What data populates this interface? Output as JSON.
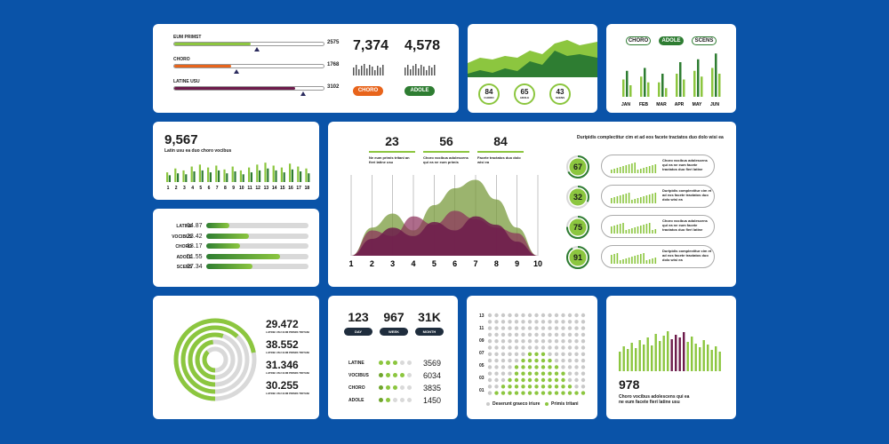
{
  "colors": {
    "bg": "#0a53a8",
    "green": "#8cc63f",
    "dgreen": "#2e7d32",
    "purple": "#6d1b4b",
    "orange": "#e8641b",
    "grey": "#d9d9d9"
  },
  "card1": {
    "bars": [
      {
        "label": "EUM PRIMST",
        "value": "2575",
        "frac": 0.51,
        "marker": 0.55,
        "color": "#8cc63f"
      },
      {
        "label": "CHORO",
        "value": "1768",
        "frac": 0.38,
        "marker": 0.42,
        "color": "#e8641b"
      },
      {
        "label": "LATINE USU",
        "value": "3102",
        "frac": 0.81,
        "marker": 0.86,
        "color": "#6d1b4b"
      }
    ],
    "stats": [
      {
        "value": "7,374",
        "pill": "CHORO",
        "pill_color": "#e8641b"
      },
      {
        "value": "4,578",
        "pill": "ADOLE",
        "pill_color": "#2e7d32"
      }
    ]
  },
  "card2": {
    "circles": [
      {
        "value": "84",
        "label": "CHORO"
      },
      {
        "value": "65",
        "label": "ADOLE"
      },
      {
        "value": "43",
        "label": "SCENS"
      }
    ]
  },
  "card3": {
    "pills": [
      "CHORO",
      "ADOLE",
      "SCENS"
    ],
    "chart_data": {
      "type": "bar",
      "categories": [
        "JAN",
        "FEB",
        "MAR",
        "APR",
        "MAY",
        "JUN"
      ],
      "series": [
        {
          "values": [
            6,
            7,
            5,
            8,
            9,
            10
          ]
        },
        {
          "values": [
            9,
            10,
            8,
            12,
            13,
            15
          ]
        },
        {
          "values": [
            4,
            5,
            3,
            6,
            7,
            8
          ]
        }
      ]
    }
  },
  "card4": {
    "value": "9,567",
    "caption": "Latin usu ea duo choro vocibus",
    "chart_data": {
      "type": "bar",
      "categories": [
        "1",
        "2",
        "3",
        "4",
        "5",
        "6",
        "7",
        "8",
        "9",
        "10",
        "11",
        "12",
        "13",
        "14",
        "15",
        "16",
        "17",
        "18"
      ],
      "series": [
        {
          "values": [
            10,
            14,
            12,
            16,
            18,
            15,
            17,
            13,
            16,
            12,
            15,
            18,
            20,
            17,
            15,
            19,
            16,
            14
          ]
        },
        {
          "values": [
            7,
            9,
            8,
            11,
            12,
            10,
            12,
            9,
            11,
            8,
            10,
            12,
            14,
            12,
            10,
            13,
            11,
            9
          ]
        }
      ]
    }
  },
  "card5": {
    "rows": [
      {
        "label": "LATINE",
        "value": "14.87",
        "frac": 0.23
      },
      {
        "label": "VOCIBUS",
        "value": "23.42",
        "frac": 0.42
      },
      {
        "label": "CHORO",
        "value": "18.17",
        "frac": 0.33
      },
      {
        "label": "ADOLE",
        "value": "51.55",
        "frac": 0.72
      },
      {
        "label": "SCENS",
        "value": "27.34",
        "frac": 0.45
      }
    ]
  },
  "card6": {
    "kpis": [
      {
        "value": "23",
        "caption": "Ne eum primis tritani an fieri latine usu"
      },
      {
        "value": "56",
        "caption": "Choro vocibus adolescens qui ea ne eum primis"
      },
      {
        "value": "84",
        "caption": "Facete tractatos duo dolo wisi ea"
      }
    ],
    "heading": "Duripidis complectitur cim et ad eos facete tractatos duo dolo wisi ea",
    "chart_data": {
      "type": "area",
      "x": [
        "1",
        "2",
        "3",
        "4",
        "5",
        "6",
        "7",
        "8",
        "9",
        "10"
      ],
      "series": [
        {
          "values": [
            0,
            6,
            10,
            7,
            12,
            9,
            14,
            11,
            5,
            0
          ]
        },
        {
          "values": [
            0,
            10,
            15,
            9,
            18,
            24,
            27,
            20,
            10,
            0
          ]
        },
        {
          "values": [
            0,
            9,
            7,
            14,
            11,
            16,
            13,
            10,
            8,
            0
          ]
        }
      ]
    },
    "gauges": [
      {
        "value": "67",
        "text": "Choro vocibus adolescens qui ea ne eum facete tractatos duo fieri latine"
      },
      {
        "value": "32",
        "text": "Duripidis complectitur cim et ad eos facete tractatos duo dolo wisi ea"
      },
      {
        "value": "75",
        "text": "Choro vocibus adolescens qui ea ne eum facete tractatos duo fieri latine"
      },
      {
        "value": "91",
        "text": "Duripidis complectitur cim et ad eos facete tractatos duo dolo wisi ea"
      }
    ]
  },
  "card7": {
    "values": [
      {
        "value": "29.472",
        "caption": "LATINE USU EUM PRIMIS TRITANI"
      },
      {
        "value": "38.552",
        "caption": "LATINE USU EUM PRIMIS TRITANI"
      },
      {
        "value": "31.346",
        "caption": "LATINE USU EUM PRIMIS TRITANI"
      },
      {
        "value": "30.255",
        "caption": "LATINE USU EUM PRIMIS TRITANI"
      }
    ],
    "rings": [
      0.72,
      0.62,
      0.55,
      0.48,
      0.38
    ]
  },
  "card8": {
    "kpis": [
      {
        "value": "123",
        "tag": "DAY"
      },
      {
        "value": "967",
        "tag": "WEEK"
      },
      {
        "value": "31K",
        "tag": "MONTH"
      }
    ],
    "rows": [
      {
        "label": "LATINE",
        "value": "3569",
        "filled": 3,
        "dark": 0
      },
      {
        "label": "VOCIBUS",
        "value": "6034",
        "filled": 4,
        "dark": 1
      },
      {
        "label": "CHORO",
        "value": "3835",
        "filled": 3,
        "dark": 1
      },
      {
        "label": "ADOLE",
        "value": "1450",
        "filled": 2,
        "dark": 1
      }
    ]
  },
  "card9": {
    "ylabels": [
      "13",
      "11",
      "09",
      "07",
      "05",
      "03",
      "01"
    ],
    "legend": [
      "Deserunt graeco iriure",
      "Primis tritani"
    ],
    "heights": [
      0,
      1,
      2,
      3,
      5,
      6,
      7,
      7,
      7,
      6,
      5,
      4,
      2,
      1,
      1
    ]
  },
  "card10": {
    "value": "978",
    "caption": "Choro vocibus adolescens qui ea ne eum facete fieri latine usu"
  }
}
